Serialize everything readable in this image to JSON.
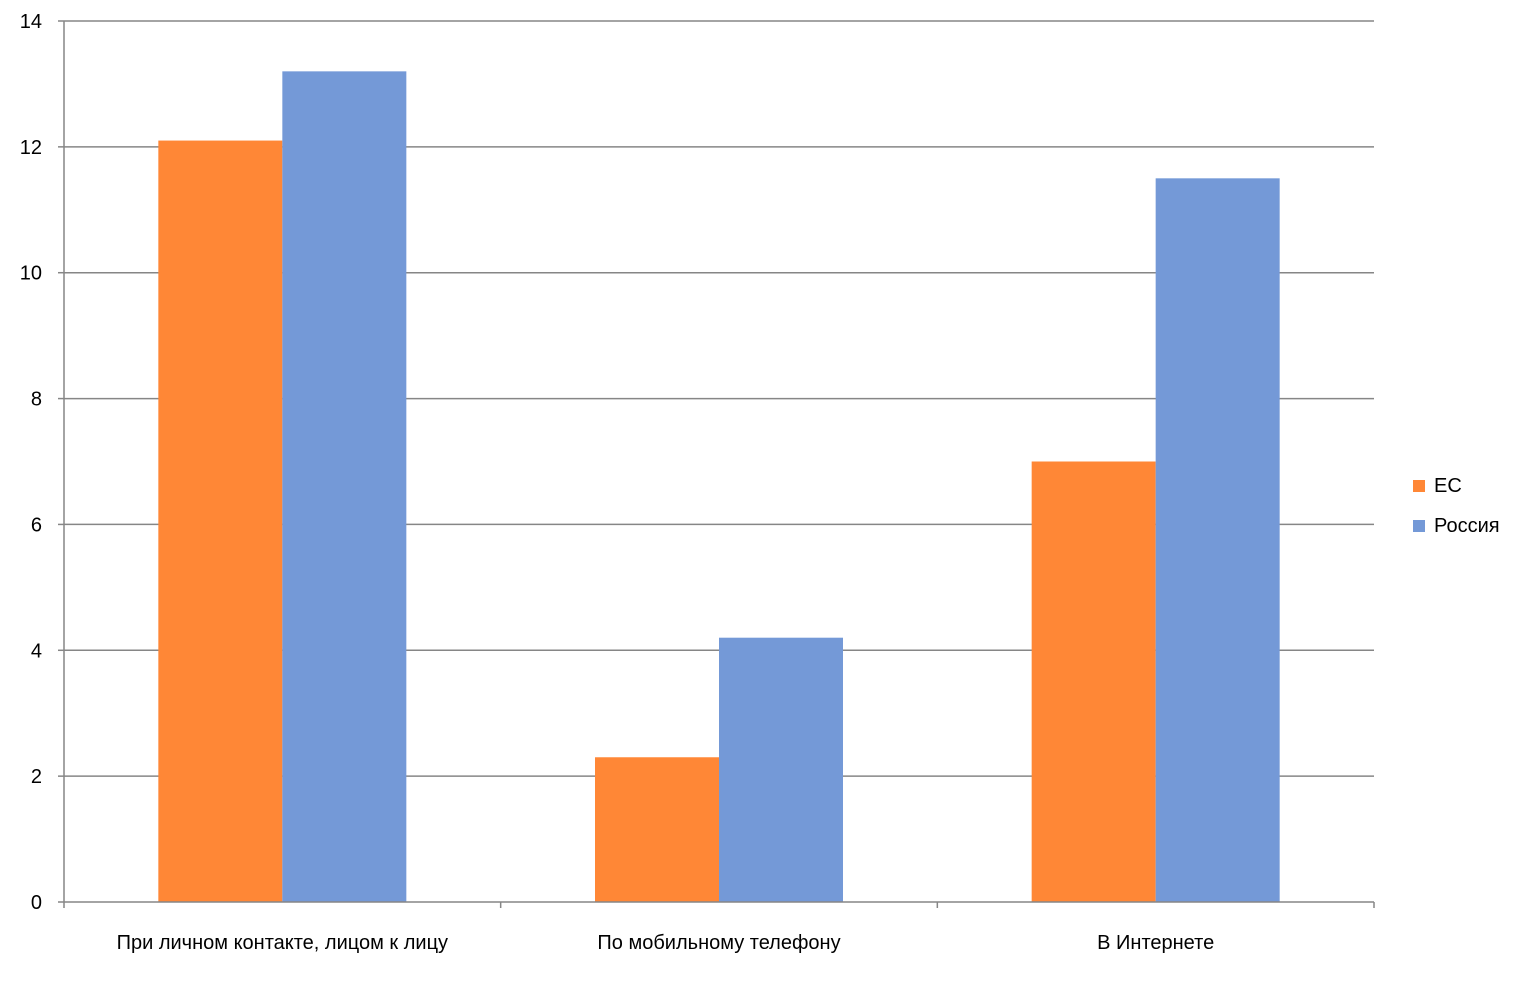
{
  "chart_data": {
    "type": "bar",
    "title": "",
    "xlabel": "",
    "ylabel": "",
    "ylim": [
      0,
      14
    ],
    "yticks": [
      0,
      2,
      4,
      6,
      8,
      10,
      12,
      14
    ],
    "grid": true,
    "legend_position": "right",
    "categories": [
      "При личном контакте, лицом к лицу",
      "По мобильному телефону",
      "В Интернете"
    ],
    "series": [
      {
        "name": "ЕС",
        "color": "#FF8736",
        "values": [
          12.1,
          2.3,
          7.0
        ]
      },
      {
        "name": "Россия",
        "color": "#7499D7",
        "values": [
          13.2,
          4.2,
          11.5
        ]
      }
    ]
  }
}
